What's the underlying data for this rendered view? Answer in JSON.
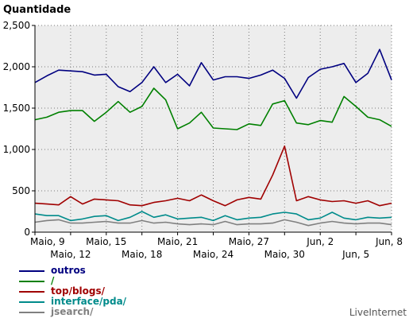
{
  "chart_data": {
    "type": "line",
    "title": "Quantidade",
    "x_labels_row1": [
      "Maio, 9",
      "Maio, 15",
      "Maio, 21",
      "Maio, 27",
      "Jun, 2",
      "Jun, 8"
    ],
    "x_labels_row2": [
      "Maio, 12",
      "Maio, 18",
      "Maio, 24",
      "Maio, 30",
      "Jun, 5"
    ],
    "row1_days": [
      0,
      6,
      12,
      18,
      24,
      30
    ],
    "row2_days": [
      3,
      9,
      15,
      21,
      27
    ],
    "y_ticks": [
      0,
      500,
      1000,
      1500,
      2000,
      2500
    ],
    "y_tick_labels": [
      "0",
      "500",
      "1,000",
      "1,500",
      "2,000",
      "2,500"
    ],
    "ylim": [
      0,
      2500
    ],
    "grid": true,
    "x": [
      "Maio, 9",
      "Maio, 10",
      "Maio, 11",
      "Maio, 12",
      "Maio, 13",
      "Maio, 14",
      "Maio, 15",
      "Maio, 16",
      "Maio, 17",
      "Maio, 18",
      "Maio, 19",
      "Maio, 20",
      "Maio, 21",
      "Maio, 22",
      "Maio, 23",
      "Maio, 24",
      "Maio, 25",
      "Maio, 26",
      "Maio, 27",
      "Maio, 28",
      "Maio, 29",
      "Maio, 30",
      "Maio, 31",
      "Jun, 1",
      "Jun, 2",
      "Jun, 3",
      "Jun, 4",
      "Jun, 5",
      "Jun, 6",
      "Jun, 7",
      "Jun, 8"
    ],
    "series": [
      {
        "name": "outros",
        "color": "#000080",
        "values": [
          1810,
          1890,
          1960,
          1950,
          1940,
          1900,
          1910,
          1760,
          1700,
          1810,
          2000,
          1810,
          1910,
          1770,
          2050,
          1840,
          1880,
          1880,
          1860,
          1900,
          1960,
          1860,
          1620,
          1870,
          1970,
          2000,
          2040,
          1810,
          1920,
          2210,
          1840
        ]
      },
      {
        "name": "/",
        "color": "#008000",
        "values": [
          1360,
          1390,
          1450,
          1470,
          1470,
          1340,
          1450,
          1580,
          1450,
          1520,
          1740,
          1600,
          1250,
          1320,
          1450,
          1260,
          1250,
          1240,
          1310,
          1290,
          1550,
          1590,
          1320,
          1300,
          1350,
          1330,
          1640,
          1520,
          1390,
          1360,
          1280
        ]
      },
      {
        "name": "top/blogs/",
        "color": "#a00000",
        "values": [
          350,
          340,
          330,
          430,
          340,
          400,
          390,
          380,
          330,
          320,
          360,
          380,
          410,
          380,
          450,
          380,
          320,
          390,
          420,
          400,
          690,
          1040,
          380,
          430,
          390,
          370,
          380,
          350,
          380,
          320,
          350
        ]
      },
      {
        "name": "interface/pda/",
        "color": "#008b8b",
        "values": [
          220,
          200,
          200,
          140,
          160,
          190,
          200,
          140,
          180,
          250,
          180,
          210,
          160,
          170,
          180,
          140,
          200,
          150,
          170,
          180,
          220,
          240,
          220,
          150,
          170,
          240,
          170,
          150,
          180,
          170,
          180
        ]
      },
      {
        "name": "jsearch/",
        "color": "#808080",
        "values": [
          120,
          140,
          150,
          110,
          110,
          120,
          130,
          110,
          110,
          140,
          110,
          120,
          100,
          90,
          100,
          90,
          130,
          90,
          100,
          100,
          110,
          150,
          120,
          80,
          110,
          130,
          110,
          100,
          110,
          110,
          90
        ]
      }
    ]
  },
  "branding": "LiveInternet"
}
